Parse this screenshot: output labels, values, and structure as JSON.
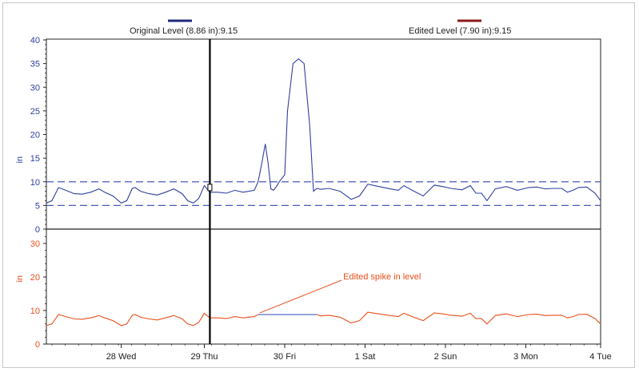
{
  "chart_data": [
    {
      "type": "line",
      "panel": "top",
      "ylabel": "in",
      "ylim": [
        0,
        40
      ],
      "yticks": [
        0,
        5,
        10,
        15,
        20,
        25,
        30,
        35,
        40
      ],
      "threshold_lines": [
        5,
        10
      ],
      "legend": [
        {
          "text": "Original Level (8.86 in):9.15",
          "color": "#1f2a7a"
        },
        {
          "text": "Edited Level (7.90 in):9.15",
          "color": "#8b1a1a"
        }
      ],
      "series": [
        {
          "color": "#3040a0",
          "x": [
            0,
            0.1,
            0.22,
            0.35,
            0.5,
            0.65,
            0.8,
            0.95,
            1.05,
            1.2,
            1.35,
            1.45,
            1.55,
            1.6,
            1.7,
            1.85,
            2.0,
            2.15,
            2.3,
            2.45,
            2.55,
            2.65,
            2.75,
            2.85,
            2.95,
            3.1,
            3.25,
            3.4,
            3.55,
            3.75,
            3.82,
            3.88,
            3.95,
            4.0,
            4.05,
            4.1,
            4.15,
            4.2,
            4.3,
            4.35,
            4.45,
            4.55,
            4.65,
            4.75,
            4.82,
            4.88,
            4.95,
            5.1,
            5.3,
            5.5,
            5.65,
            5.8,
            6.0,
            6.2,
            6.35,
            6.45,
            6.6,
            6.8,
            7.0,
            7.15,
            7.3,
            7.5,
            7.65,
            7.75,
            7.85,
            7.95,
            8.1,
            8.3,
            8.5,
            8.7,
            8.85,
            9.0,
            9.15,
            9.3,
            9.4,
            9.5,
            9.6,
            9.75,
            9.9,
            10.0
          ],
          "y": [
            5.5,
            6.0,
            8.8,
            8.2,
            7.5,
            7.4,
            7.8,
            8.5,
            7.8,
            7.0,
            5.5,
            6.0,
            8.6,
            8.8,
            8.0,
            7.5,
            7.2,
            7.8,
            8.5,
            7.5,
            6.0,
            5.5,
            6.5,
            9.2,
            7.8,
            7.8,
            7.6,
            8.2,
            7.8,
            8.2,
            10.0,
            13.5,
            18.0,
            14.0,
            8.5,
            8.2,
            9.0,
            10.0,
            11.5,
            25.0,
            35.0,
            36.0,
            35.0,
            22.0,
            8.0,
            8.6,
            8.4,
            8.6,
            8.0,
            6.3,
            7.0,
            9.5,
            9.0,
            8.5,
            8.2,
            9.2,
            8.2,
            7.0,
            9.3,
            9.0,
            8.6,
            8.3,
            9.2,
            7.6,
            7.6,
            6.0,
            8.5,
            9.0,
            8.2,
            8.8,
            8.9,
            8.5,
            8.6,
            8.6,
            7.8,
            8.2,
            8.8,
            8.9,
            7.6,
            6.0
          ]
        }
      ]
    },
    {
      "type": "line",
      "panel": "bottom",
      "ylabel": "in",
      "ylim": [
        0,
        35
      ],
      "yticks": [
        0,
        10,
        20,
        30
      ],
      "xlim": [
        0,
        10
      ],
      "xticks": [
        {
          "x": 1.35,
          "label": "28 Wed"
        },
        {
          "x": 2.85,
          "label": "29 Thu"
        },
        {
          "x": 4.3,
          "label": "30 Fri"
        },
        {
          "x": 5.75,
          "label": "1 Sat"
        },
        {
          "x": 7.2,
          "label": "2 Sun"
        },
        {
          "x": 8.65,
          "label": "3 Mon"
        },
        {
          "x": 10.0,
          "label": "4 Tue"
        }
      ],
      "annotation": {
        "text": "Edited spike in level",
        "x": 3.82,
        "y": 8.8,
        "text_x": 5.5,
        "text_y": 20
      },
      "edited_segment": {
        "x_start": 3.82,
        "x_end": 4.88,
        "y": 8.8,
        "color": "#4060c0"
      },
      "series": [
        {
          "color": "#e8501c",
          "x": [
            0,
            0.1,
            0.22,
            0.35,
            0.5,
            0.65,
            0.8,
            0.95,
            1.05,
            1.2,
            1.35,
            1.45,
            1.55,
            1.6,
            1.7,
            1.85,
            2.0,
            2.15,
            2.3,
            2.45,
            2.55,
            2.65,
            2.75,
            2.85,
            2.95,
            3.1,
            3.25,
            3.4,
            3.55,
            3.75,
            3.82
          ],
          "y": [
            5.5,
            6.0,
            8.8,
            8.2,
            7.5,
            7.4,
            7.8,
            8.5,
            7.8,
            7.0,
            5.5,
            6.0,
            8.6,
            8.8,
            8.0,
            7.5,
            7.2,
            7.8,
            8.5,
            7.5,
            6.0,
            5.5,
            6.5,
            9.2,
            7.8,
            7.8,
            7.6,
            8.2,
            7.8,
            8.2,
            8.8
          ]
        },
        {
          "color": "#e8501c",
          "x": [
            4.88,
            4.95,
            5.1,
            5.3,
            5.5,
            5.65,
            5.8,
            6.0,
            6.2,
            6.35,
            6.45,
            6.6,
            6.8,
            7.0,
            7.15,
            7.3,
            7.5,
            7.65,
            7.75,
            7.85,
            7.95,
            8.1,
            8.3,
            8.5,
            8.7,
            8.85,
            9.0,
            9.15,
            9.3,
            9.4,
            9.5,
            9.6,
            9.75,
            9.9,
            10.0
          ],
          "y": [
            8.8,
            8.4,
            8.6,
            8.0,
            6.3,
            7.0,
            9.5,
            9.0,
            8.5,
            8.2,
            9.2,
            8.2,
            7.0,
            9.3,
            9.0,
            8.6,
            8.3,
            9.2,
            7.6,
            7.6,
            6.0,
            8.5,
            9.0,
            8.2,
            8.8,
            8.9,
            8.5,
            8.6,
            8.6,
            7.8,
            8.2,
            8.8,
            8.9,
            7.6,
            6.0
          ]
        }
      ]
    }
  ],
  "cursor_x": 2.95,
  "colors": {
    "axis": "#222222",
    "top_tick_label": "#3040a0",
    "bottom_tick_label": "#e8501c",
    "threshold": "#4a5ab8",
    "annotation": "#e8501c",
    "cursor": "#000000"
  }
}
